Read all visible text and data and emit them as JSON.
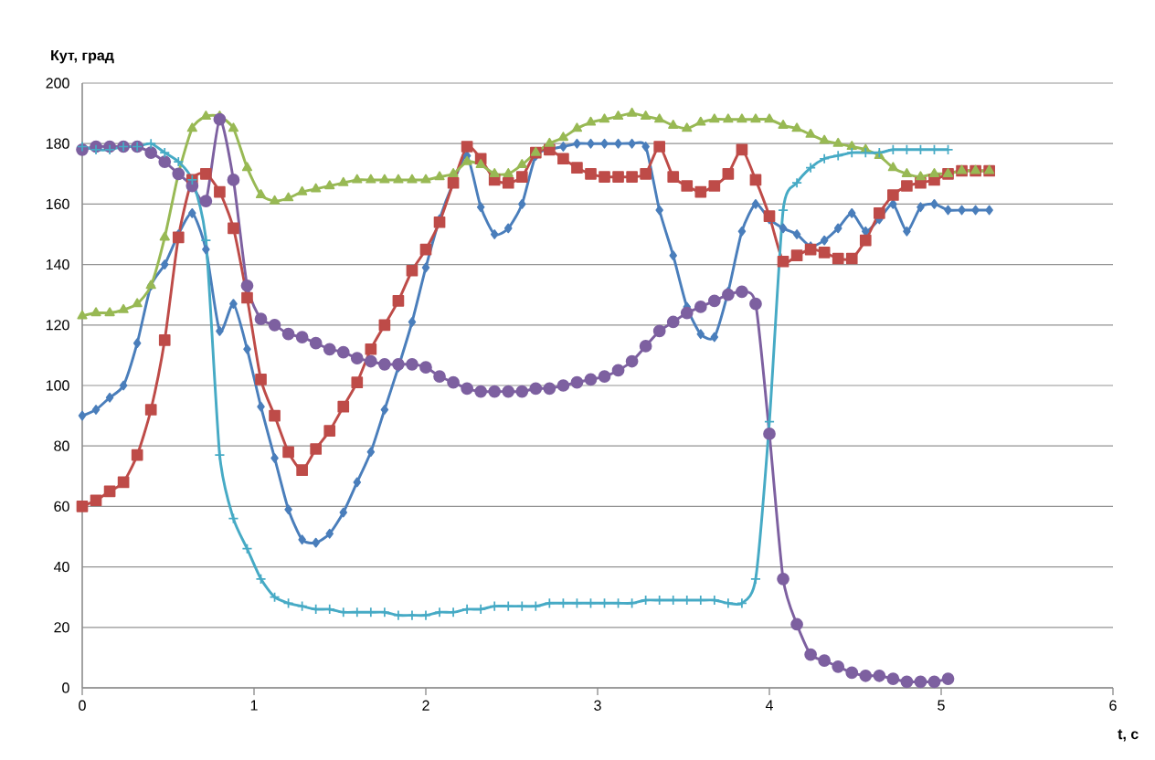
{
  "chart_data": {
    "type": "line",
    "xlabel": "t, c",
    "ylabel": "Кут, град",
    "xlim": [
      0,
      6
    ],
    "xticks": [
      0,
      1,
      2,
      3,
      4,
      5,
      6
    ],
    "ylim": [
      0,
      200
    ],
    "yticks": [
      0,
      20,
      40,
      60,
      80,
      100,
      120,
      140,
      160,
      180,
      200
    ],
    "grid": "y",
    "x": [
      0,
      0.08,
      0.16,
      0.24,
      0.32,
      0.4,
      0.48,
      0.56,
      0.64,
      0.72,
      0.8,
      0.88,
      0.96,
      1.04,
      1.12,
      1.2,
      1.28,
      1.36,
      1.44,
      1.52,
      1.6,
      1.68,
      1.76,
      1.84,
      1.92,
      2,
      2.08,
      2.16,
      2.24,
      2.32,
      2.4,
      2.48,
      2.56,
      2.64,
      2.72,
      2.8,
      2.88,
      2.96,
      3.04,
      3.12,
      3.2,
      3.28,
      3.36,
      3.44,
      3.52,
      3.6,
      3.68,
      3.76,
      3.84,
      3.92,
      4,
      4.08,
      4.16,
      4.24,
      4.32,
      4.4,
      4.48,
      4.56,
      4.64,
      4.72,
      4.8,
      4.88,
      4.96,
      5.04,
      5.12,
      5.2,
      5.28
    ],
    "series": [
      {
        "color": "#4a7ebb",
        "marker": "diamond",
        "values": [
          90,
          92,
          96,
          100,
          114,
          133,
          140,
          150,
          157,
          145,
          118,
          127,
          112,
          93,
          76,
          59,
          49,
          48,
          51,
          58,
          68,
          78,
          92,
          106,
          121,
          139,
          155,
          167,
          176,
          159,
          150,
          152,
          160,
          176,
          178,
          179,
          180,
          180,
          180,
          180,
          180,
          179,
          158,
          143,
          126,
          117,
          116,
          131,
          151,
          160,
          155,
          152,
          150,
          146,
          148,
          152,
          157,
          151,
          155,
          160,
          151,
          159,
          160,
          158,
          158,
          158,
          158
        ]
      },
      {
        "color": "#be4b48",
        "marker": "square",
        "values": [
          60,
          62,
          65,
          68,
          77,
          92,
          115,
          149,
          168,
          170,
          164,
          152,
          129,
          102,
          90,
          78,
          72,
          79,
          85,
          93,
          101,
          112,
          120,
          128,
          138,
          145,
          154,
          167,
          179,
          175,
          168,
          167,
          169,
          177,
          178,
          175,
          172,
          170,
          169,
          169,
          169,
          170,
          179,
          169,
          166,
          164,
          166,
          170,
          178,
          168,
          156,
          141,
          143,
          145,
          144,
          142,
          142,
          148,
          157,
          163,
          166,
          167,
          168,
          170,
          171,
          171,
          171
        ]
      },
      {
        "color": "#98b954",
        "marker": "triangle",
        "values": [
          123,
          124,
          124,
          125,
          127,
          133,
          149,
          170,
          185,
          189,
          189,
          185,
          172,
          163,
          161,
          162,
          164,
          165,
          166,
          167,
          168,
          168,
          168,
          168,
          168,
          168,
          169,
          170,
          174,
          173,
          170,
          170,
          173,
          177,
          180,
          182,
          185,
          187,
          188,
          189,
          190,
          189,
          188,
          186,
          185,
          187,
          188,
          188,
          188,
          188,
          188,
          186,
          185,
          183,
          181,
          180,
          179,
          178,
          176,
          172,
          170,
          169,
          170,
          170,
          171,
          171,
          171
        ]
      },
      {
        "color": "#7d60a0",
        "marker": "circle",
        "values": [
          178,
          179,
          179,
          179,
          179,
          177,
          174,
          170,
          166,
          161,
          188,
          168,
          133,
          122,
          120,
          117,
          116,
          114,
          112,
          111,
          109,
          108,
          107,
          107,
          107,
          106,
          103,
          101,
          99,
          98,
          98,
          98,
          98,
          99,
          99,
          100,
          101,
          102,
          103,
          105,
          108,
          113,
          118,
          121,
          124,
          126,
          128,
          130,
          131,
          127,
          84,
          36,
          21,
          11,
          9,
          7,
          5,
          4,
          4,
          3,
          2,
          2,
          2,
          3,
          null,
          null,
          null
        ]
      },
      {
        "color": "#46aac5",
        "marker": "cross",
        "values": [
          179,
          178,
          178,
          179,
          179,
          180,
          177,
          174,
          168,
          148,
          77,
          56,
          46,
          36,
          30,
          28,
          27,
          26,
          26,
          25,
          25,
          25,
          25,
          24,
          24,
          24,
          25,
          25,
          26,
          26,
          27,
          27,
          27,
          27,
          28,
          28,
          28,
          28,
          28,
          28,
          28,
          29,
          29,
          29,
          29,
          29,
          29,
          28,
          28,
          36,
          88,
          158,
          167,
          172,
          175,
          176,
          177,
          177,
          177,
          178,
          178,
          178,
          178,
          178,
          null,
          null,
          null
        ]
      }
    ]
  }
}
